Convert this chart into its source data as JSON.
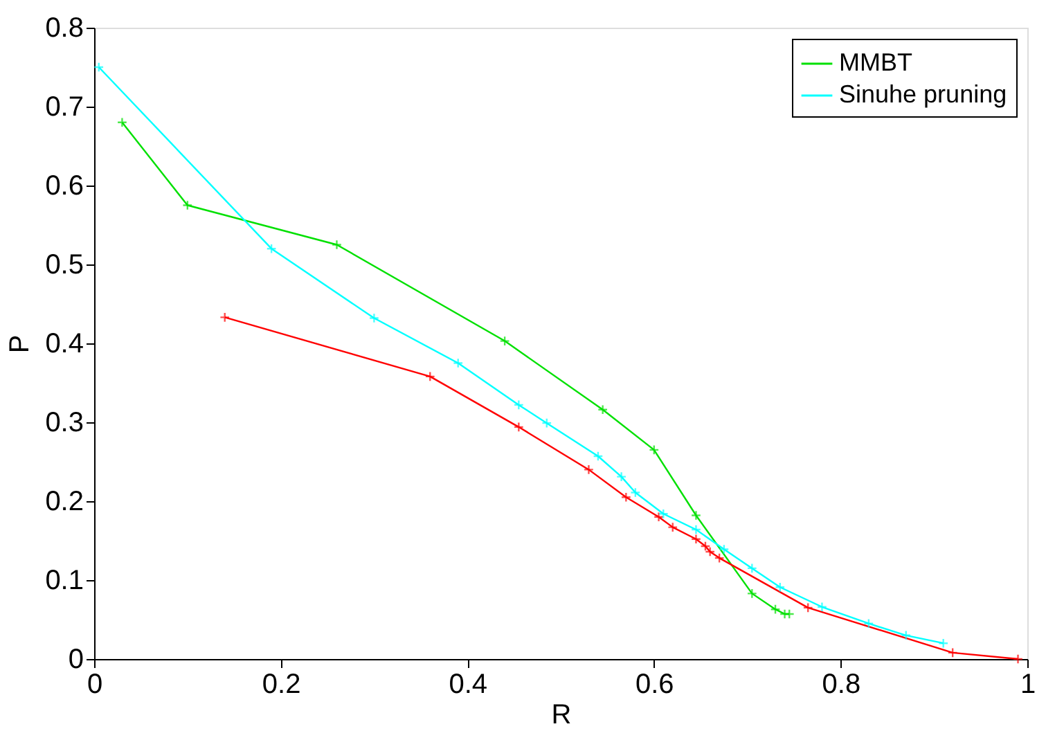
{
  "chart_data": {
    "type": "line",
    "xlabel": "R",
    "ylabel": "P",
    "xlim": [
      0,
      1
    ],
    "ylim": [
      0,
      0.8
    ],
    "xticks": [
      0,
      0.2,
      0.4,
      0.6,
      0.8,
      1
    ],
    "yticks": [
      0,
      0.1,
      0.2,
      0.3,
      0.4,
      0.5,
      0.6,
      0.7,
      0.8
    ],
    "grid": false,
    "legend": "top right",
    "marker": "cross",
    "line_style": "solid",
    "series": [
      {
        "name": "MMBT",
        "color": "#00e000",
        "x": [
          0.03,
          0.1,
          0.26,
          0.44,
          0.545,
          0.6,
          0.645,
          0.705,
          0.73,
          0.74,
          0.745
        ],
        "values": [
          0.68,
          0.575,
          0.525,
          0.403,
          0.316,
          0.265,
          0.182,
          0.083,
          0.063,
          0.057,
          0.057
        ]
      },
      {
        "color": "#ff0000",
        "x": [
          0.14,
          0.36,
          0.455,
          0.53,
          0.57,
          0.605,
          0.62,
          0.645,
          0.655,
          0.66,
          0.67,
          0.765,
          0.92,
          0.99
        ],
        "values": [
          0.433,
          0.358,
          0.294,
          0.24,
          0.205,
          0.18,
          0.167,
          0.152,
          0.143,
          0.136,
          0.128,
          0.065,
          0.008,
          0.0
        ]
      },
      {
        "name": "Sinuhe pruning",
        "color": "#00ffff",
        "x": [
          0.005,
          0.19,
          0.3,
          0.39,
          0.455,
          0.485,
          0.54,
          0.565,
          0.58,
          0.61,
          0.645,
          0.675,
          0.705,
          0.735,
          0.78,
          0.83,
          0.87,
          0.91
        ],
        "values": [
          0.75,
          0.52,
          0.432,
          0.375,
          0.322,
          0.299,
          0.257,
          0.231,
          0.211,
          0.184,
          0.164,
          0.139,
          0.115,
          0.091,
          0.066,
          0.045,
          0.03,
          0.02
        ]
      }
    ]
  }
}
